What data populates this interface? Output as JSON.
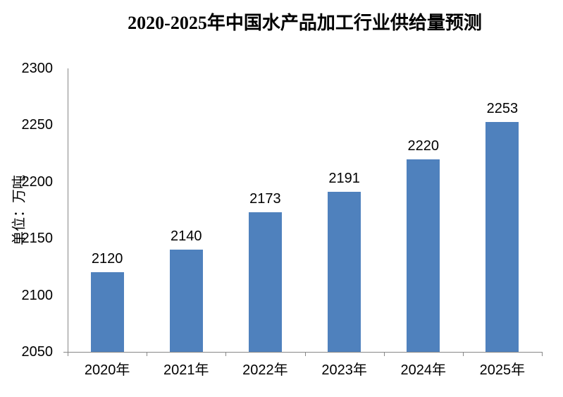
{
  "chart_data": {
    "type": "bar",
    "title": "2020-2025年中国水产品加工行业供给量预测",
    "ylabel": "单位：万吨",
    "xlabel": "",
    "categories": [
      "2020年",
      "2021年",
      "2022年",
      "2023年",
      "2024年",
      "2025年"
    ],
    "values": [
      2120,
      2140,
      2173,
      2191,
      2220,
      2253
    ],
    "ylim": [
      2050,
      2300
    ],
    "yticks": [
      2050,
      2100,
      2150,
      2200,
      2250,
      2300
    ],
    "grid": false,
    "legend_position": "none",
    "data_labels_shown": true,
    "bar_color": "#4F81BD",
    "axis_color": "#878787",
    "text_color": "#000000",
    "background_color": "#FFFFFF"
  }
}
